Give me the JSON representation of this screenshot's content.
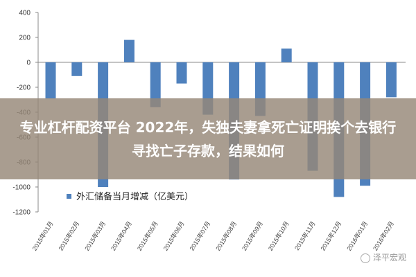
{
  "chart_data": {
    "type": "bar",
    "categories": [
      "2015年01月",
      "2015年02月",
      "2015年03月",
      "2015年04月",
      "2015年05月",
      "2015年06月",
      "2015年07月",
      "2015年08月",
      "2015年09月",
      "2015年10月",
      "2015年11月",
      "2015年12月",
      "2016年01月",
      "2016年02月"
    ],
    "series": [
      {
        "name": "外汇储备当月增减（亿美元）",
        "values": [
          -290,
          -110,
          -1000,
          180,
          -360,
          -170,
          -420,
          -940,
          -430,
          110,
          -870,
          -1080,
          -990,
          -280
        ]
      }
    ],
    "ylim": [
      -1200,
      400
    ],
    "yticks": [
      400,
      200,
      0,
      -200,
      -400,
      -600,
      -800,
      -1000,
      -1200
    ],
    "grid": false,
    "legend_position": "bottom-left",
    "bar_color": "#4f81bd"
  },
  "overlay": {
    "headline": "专业杠杆配资平台 2022年，失独夫妻拿死亡证明挨个去银行寻找亡子存款，结果如何"
  },
  "watermark": {
    "text": "泽平宏观"
  }
}
